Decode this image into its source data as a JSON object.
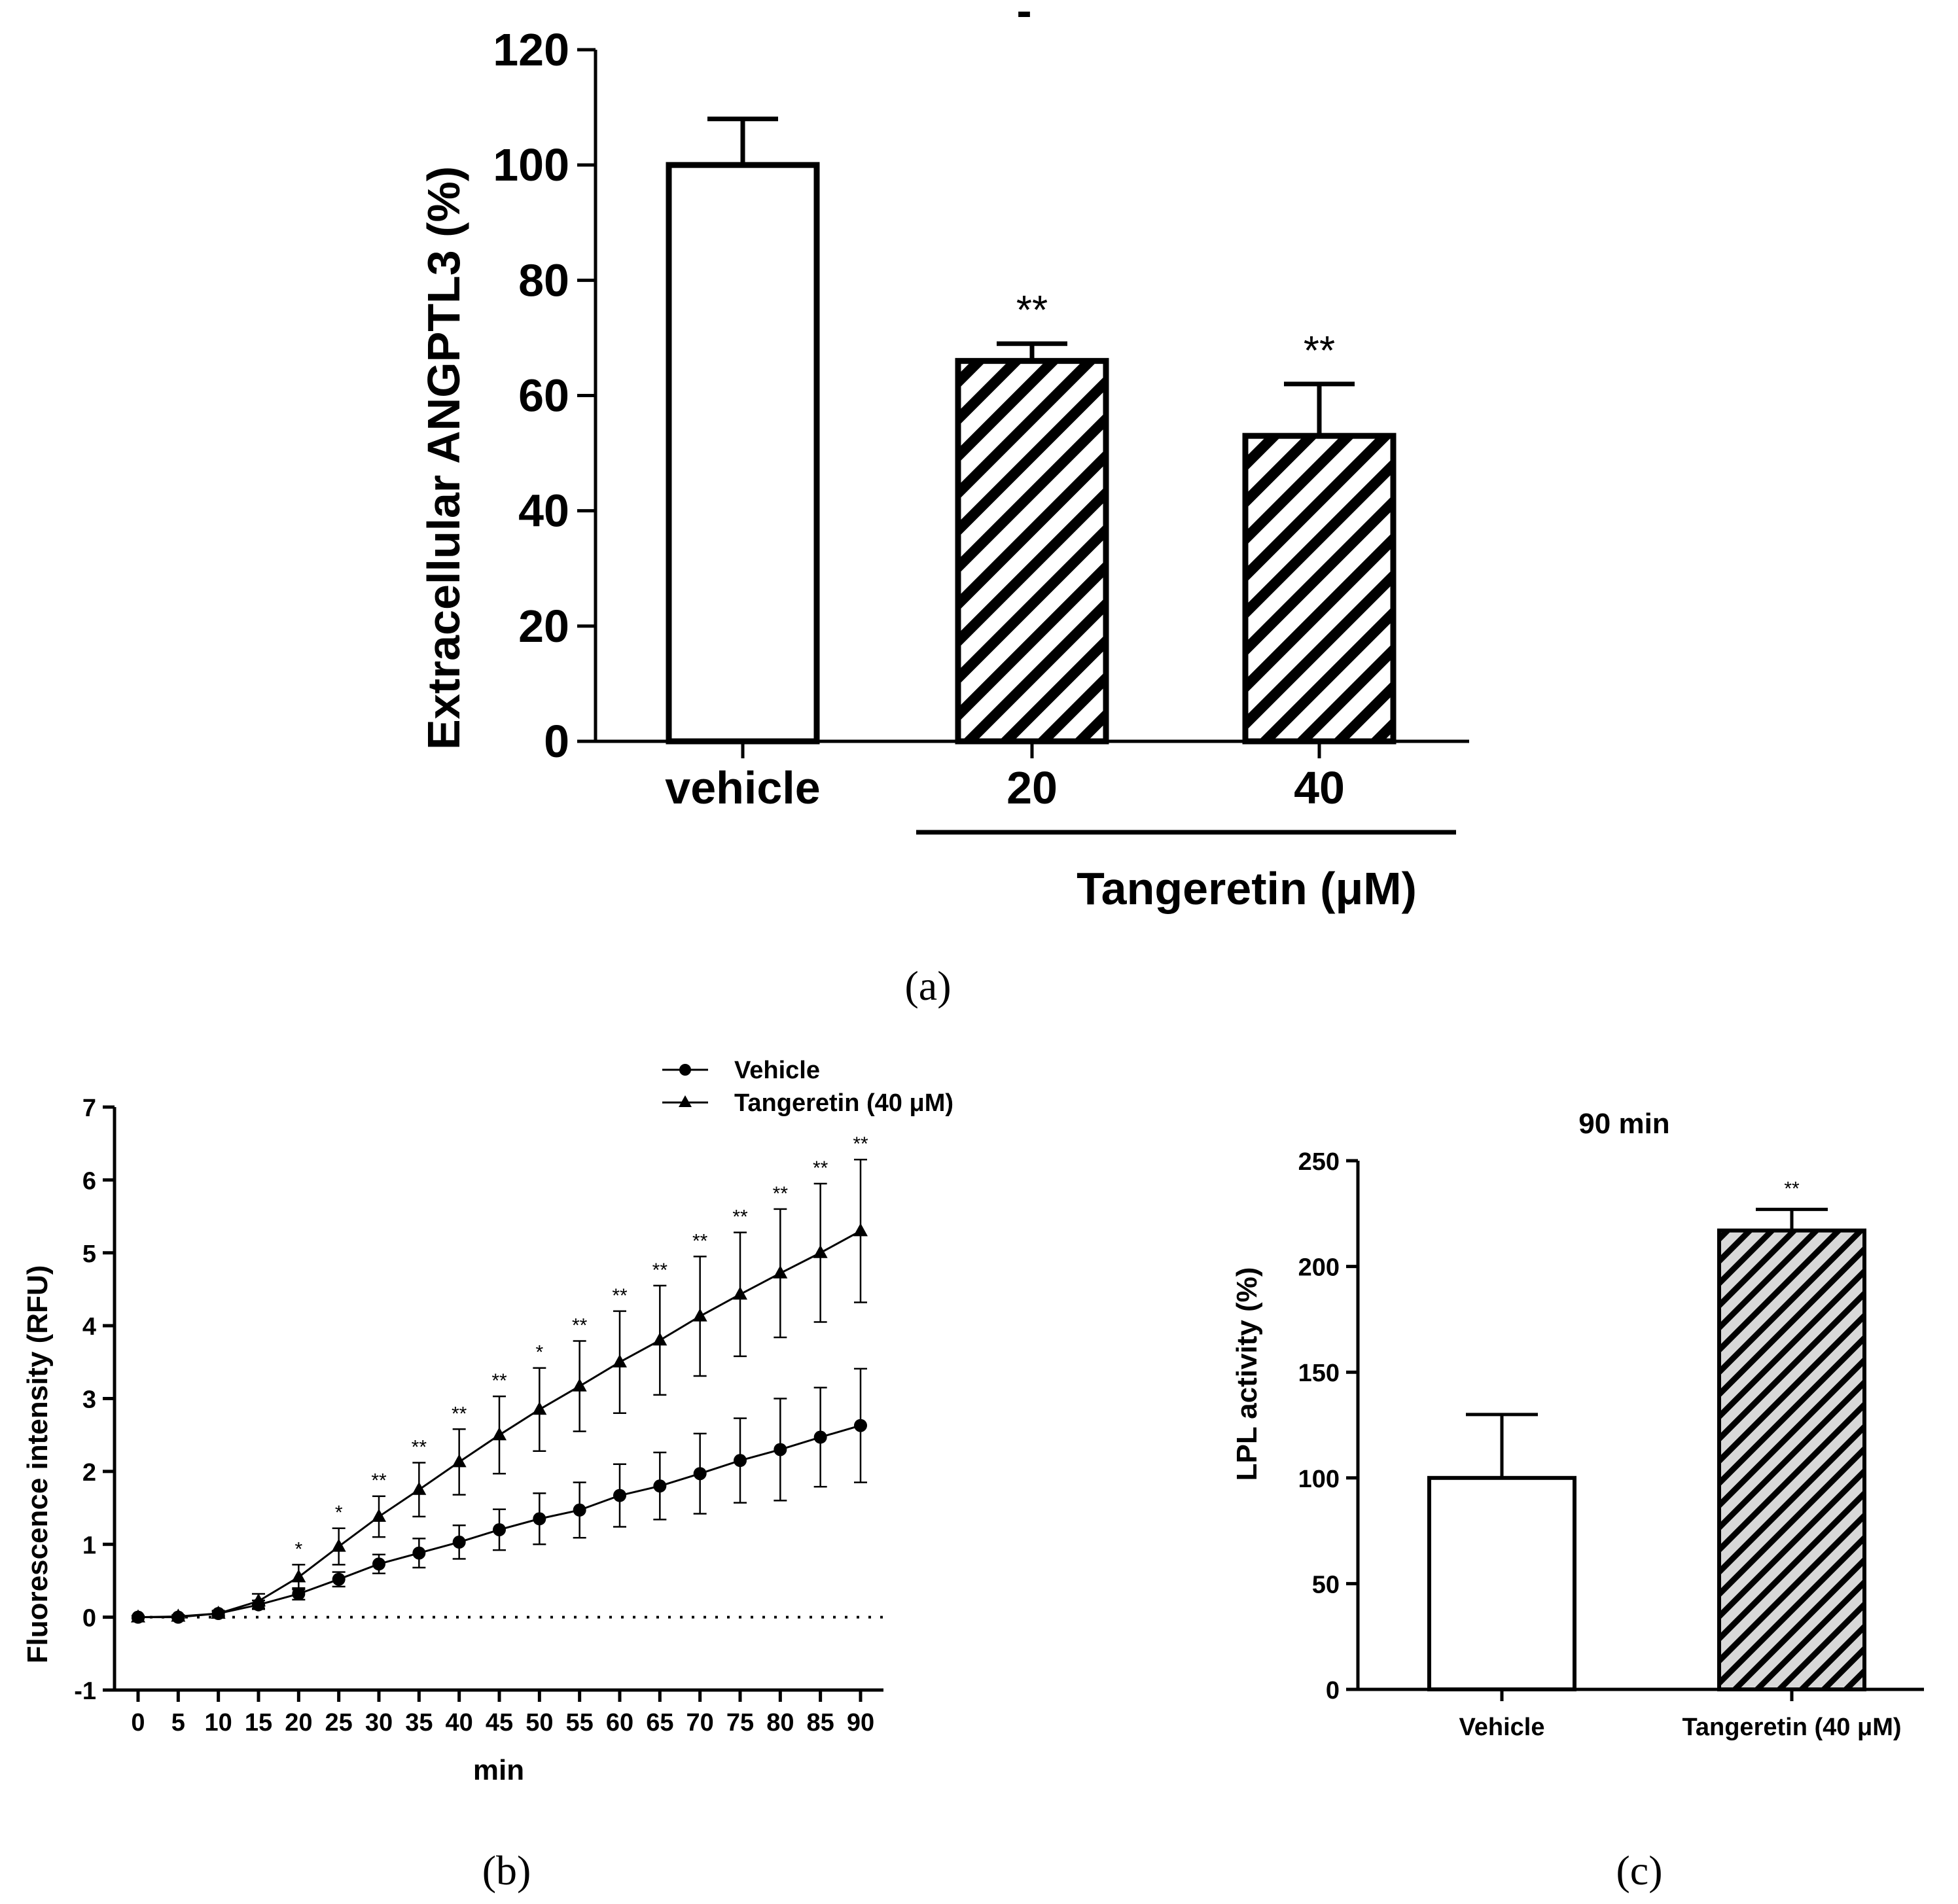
{
  "chart_data": [
    {
      "id": "a",
      "panel_label": "(a)",
      "type": "bar",
      "ylabel": "Extracellular ANGPTL3 (%)",
      "ylim": [
        0,
        120
      ],
      "yticks": [
        0,
        20,
        40,
        60,
        80,
        100,
        120
      ],
      "categories": [
        "vehicle",
        "20",
        "40"
      ],
      "values": [
        100,
        66,
        53
      ],
      "errors": [
        8,
        3,
        9
      ],
      "patterns": [
        "open",
        "hatched",
        "hatched"
      ],
      "significance": [
        "",
        "**",
        "**"
      ],
      "group_label": "Tangeretin (μM)",
      "stray_mark": "-"
    },
    {
      "id": "b",
      "panel_label": "(b)",
      "type": "line",
      "xlabel": "min",
      "ylabel": "Fluorescence intensity (RFU)",
      "ylim": [
        -1,
        7
      ],
      "yticks": [
        -1,
        0,
        1,
        2,
        3,
        4,
        5,
        6,
        7
      ],
      "x": [
        0,
        5,
        10,
        15,
        20,
        25,
        30,
        35,
        40,
        45,
        50,
        55,
        60,
        65,
        70,
        75,
        80,
        85,
        90
      ],
      "series": [
        {
          "name": "Vehicle",
          "marker": "circle",
          "values": [
            0,
            0,
            0.05,
            0.17,
            0.32,
            0.52,
            0.73,
            0.88,
            1.03,
            1.2,
            1.35,
            1.47,
            1.67,
            1.8,
            1.97,
            2.15,
            2.3,
            2.47,
            2.63
          ],
          "errors": [
            0.02,
            0.02,
            0.03,
            0.06,
            0.08,
            0.1,
            0.13,
            0.2,
            0.23,
            0.28,
            0.35,
            0.38,
            0.43,
            0.46,
            0.55,
            0.58,
            0.7,
            0.68,
            0.78
          ]
        },
        {
          "name": "Tangeretin (40 μM)",
          "marker": "triangle",
          "values": [
            0,
            0.01,
            0.05,
            0.22,
            0.55,
            0.97,
            1.38,
            1.75,
            2.13,
            2.5,
            2.85,
            3.17,
            3.5,
            3.8,
            4.13,
            4.43,
            4.72,
            5.0,
            5.3
          ],
          "errors": [
            0.02,
            0.02,
            0.04,
            0.1,
            0.17,
            0.25,
            0.28,
            0.37,
            0.45,
            0.53,
            0.57,
            0.62,
            0.7,
            0.75,
            0.82,
            0.85,
            0.88,
            0.95,
            0.98
          ]
        }
      ],
      "significance": [
        "",
        "",
        "",
        "",
        "*",
        "*",
        "**",
        "**",
        "**",
        "**",
        "*",
        "**",
        "**",
        "**",
        "**",
        "**",
        "**",
        "**",
        "**"
      ],
      "reference_line": 0,
      "legend_position": "top-right"
    },
    {
      "id": "c",
      "panel_label": "(c)",
      "type": "bar",
      "title": "90 min",
      "ylabel": "LPL activity (%)",
      "ylim": [
        0,
        250
      ],
      "yticks": [
        0,
        50,
        100,
        150,
        200,
        250
      ],
      "categories": [
        "Vehicle",
        "Tangeretin (40 μM)"
      ],
      "values": [
        100,
        217
      ],
      "errors": [
        30,
        10
      ],
      "patterns": [
        "open",
        "hatched"
      ],
      "significance": [
        "",
        "**"
      ]
    }
  ]
}
